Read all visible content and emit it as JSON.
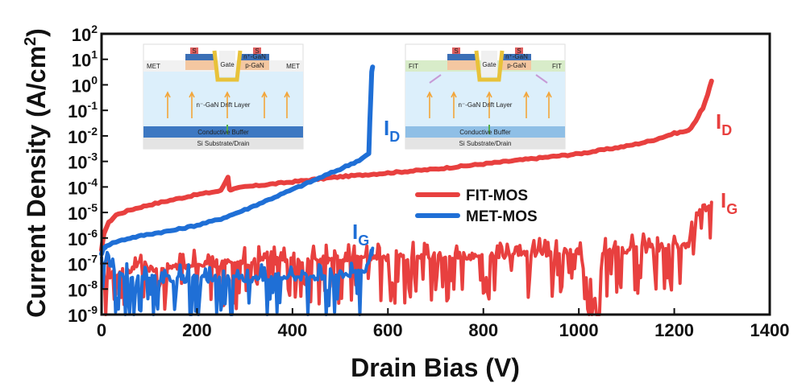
{
  "chart_data": {
    "type": "line",
    "xlabel": "Drain Bias (V)",
    "ylabel_main": "Current Density (A/cm",
    "ylabel_sup": "2",
    "ylabel_tail": ")",
    "xlim": [
      0,
      1400
    ],
    "ylim_log10": [
      -9,
      2
    ],
    "yscale": "log",
    "x_ticks": [
      0,
      200,
      400,
      600,
      800,
      1000,
      1200,
      1400
    ],
    "x_tick_labels": [
      "0",
      "200",
      "400",
      "600",
      "800",
      "1000",
      "1200",
      "1400"
    ],
    "y_ticks_exp": [
      2,
      1,
      0,
      -1,
      -2,
      -3,
      -4,
      -5,
      -6,
      -7,
      -8,
      -9
    ],
    "y_tick_labels": [
      {
        "base": "10",
        "exp": "2"
      },
      {
        "base": "10",
        "exp": "1"
      },
      {
        "base": "10",
        "exp": "0"
      },
      {
        "base": "10",
        "exp": "-1"
      },
      {
        "base": "10",
        "exp": "-2"
      },
      {
        "base": "10",
        "exp": "-3"
      },
      {
        "base": "10",
        "exp": "-4"
      },
      {
        "base": "10",
        "exp": "-5"
      },
      {
        "base": "10",
        "exp": "-6"
      },
      {
        "base": "10",
        "exp": "-7"
      },
      {
        "base": "10",
        "exp": "-8"
      },
      {
        "base": "10",
        "exp": "-9"
      }
    ],
    "legend": [
      {
        "name": "FIT-MOS",
        "color": "#e8403f"
      },
      {
        "name": "MET-MOS",
        "color": "#1f6fd6"
      }
    ],
    "legend_position": "center-right",
    "series": [
      {
        "name": "FIT-MOS",
        "quantity": "I_D",
        "color": "#e8403f",
        "x": [
          0,
          5,
          15,
          30,
          60,
          100,
          150,
          200,
          250,
          265,
          268,
          272,
          300,
          400,
          500,
          600,
          700,
          800,
          900,
          1000,
          1100,
          1150,
          1200,
          1230,
          1245,
          1260,
          1270,
          1278
        ],
        "y_log10": [
          -6.5,
          -5.8,
          -5.4,
          -5.1,
          -4.9,
          -4.7,
          -4.5,
          -4.3,
          -4.15,
          -3.6,
          -4.1,
          -4.1,
          -4.0,
          -3.8,
          -3.6,
          -3.45,
          -3.3,
          -3.1,
          -2.9,
          -2.7,
          -2.4,
          -2.2,
          -1.9,
          -1.8,
          -1.4,
          -0.9,
          -0.4,
          0.15
        ]
      },
      {
        "name": "MET-MOS",
        "quantity": "I_D",
        "color": "#1f6fd6",
        "x": [
          0,
          5,
          10,
          30,
          60,
          100,
          150,
          200,
          250,
          300,
          350,
          400,
          450,
          500,
          540,
          560,
          562,
          566,
          568
        ],
        "y_log10": [
          -6.6,
          -6.4,
          -6.3,
          -6.15,
          -6.0,
          -5.85,
          -5.7,
          -5.5,
          -5.25,
          -4.9,
          -4.5,
          -4.1,
          -3.7,
          -3.3,
          -2.95,
          -2.7,
          -1.5,
          0.5,
          0.7
        ]
      },
      {
        "name": "FIT-MOS",
        "quantity": "I_G",
        "color": "#e8403f",
        "x": [
          0,
          50,
          100,
          150,
          200,
          250,
          300,
          350,
          400,
          450,
          500,
          550,
          600,
          650,
          700,
          750,
          800,
          850,
          900,
          950,
          1000,
          1040,
          1050,
          1100,
          1150,
          1200,
          1230,
          1240,
          1250,
          1260,
          1270,
          1278
        ],
        "y_log10": [
          -7.5,
          -7.3,
          -7.2,
          -7.1,
          -7.0,
          -7.0,
          -6.95,
          -6.9,
          -6.9,
          -6.85,
          -6.85,
          -6.8,
          -6.8,
          -6.75,
          -6.7,
          -6.7,
          -6.7,
          -6.65,
          -6.6,
          -6.55,
          -6.5,
          -9.0,
          -6.5,
          -6.45,
          -6.4,
          -6.3,
          -6.3,
          -5.0,
          -5.1,
          -4.8,
          -4.9,
          -4.6
        ]
      },
      {
        "name": "MET-MOS",
        "quantity": "I_G",
        "color": "#1f6fd6",
        "x": [
          0,
          50,
          100,
          150,
          200,
          250,
          300,
          350,
          400,
          450,
          500,
          550,
          565,
          568
        ],
        "y_log10": [
          -6.8,
          -7.6,
          -7.6,
          -7.6,
          -7.6,
          -7.6,
          -7.6,
          -7.5,
          -7.5,
          -7.5,
          -7.4,
          -7.4,
          -6.8,
          -6.4
        ]
      }
    ],
    "annotations": [
      {
        "text": "I",
        "sub": "D",
        "color": "#1f6fd6",
        "series": "MET-MOS I_D"
      },
      {
        "text": "I",
        "sub": "D",
        "color": "#e8403f",
        "series": "FIT-MOS I_D"
      },
      {
        "text": "I",
        "sub": "G",
        "color": "#1f6fd6",
        "series": "MET-MOS I_G"
      },
      {
        "text": "I",
        "sub": "G",
        "color": "#e8403f",
        "series": "FIT-MOS I_G"
      }
    ],
    "insets": [
      {
        "name": "met-inset",
        "labels": {
          "side_left": "MET",
          "side_right": "MET",
          "gate": "Gate",
          "n_gan": "n⁺-GaN",
          "p_gan": "p-GaN",
          "drift": "n⁻-GaN Drift Layer",
          "buffer": "Conductive Buffer",
          "substrate": "Si Substrate/Drain",
          "source_a": "S",
          "source_b": "S"
        }
      },
      {
        "name": "fit-inset",
        "labels": {
          "side_left": "FIT",
          "side_right": "FIT",
          "gate": "Gate",
          "n_gan": "n⁺-GaN",
          "p_gan": "p-GaN",
          "drift": "n⁻-GaN Drift Layer",
          "buffer": "Conductive Buffer",
          "substrate": "Si Substrate/Drain",
          "source_a": "S",
          "source_b": "S"
        }
      }
    ]
  }
}
